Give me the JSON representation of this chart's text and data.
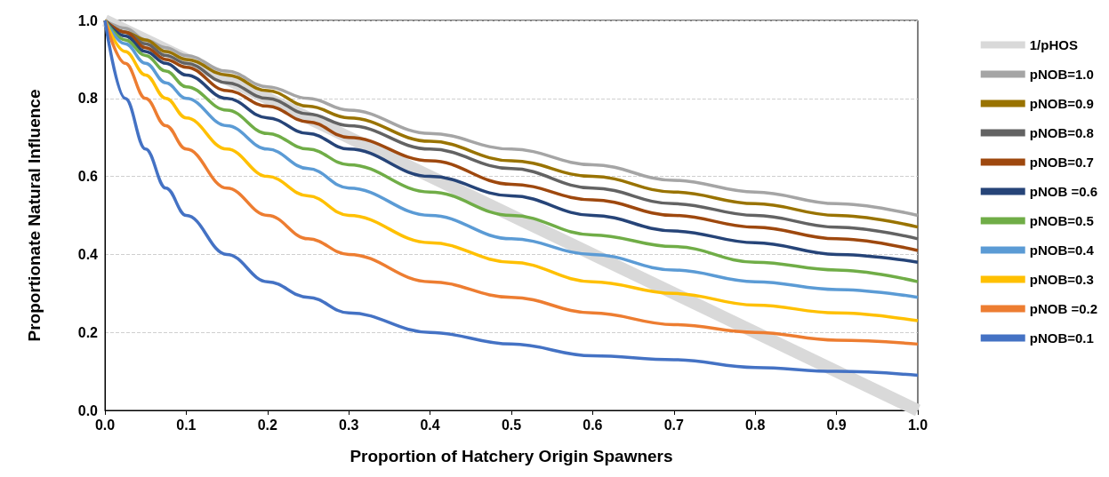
{
  "chart_data": {
    "type": "line",
    "xlabel": "Proportion of Hatchery Origin Spawners",
    "ylabel": "Proportionate Natural Influence",
    "x": [
      0,
      0.025,
      0.05,
      0.075,
      0.1,
      0.15,
      0.2,
      0.25,
      0.3,
      0.4,
      0.5,
      0.6,
      0.7,
      0.8,
      0.9,
      1.0
    ],
    "series": [
      {
        "name": "1/pHOS",
        "color": "#d9d9d9",
        "x": [
          0,
          1
        ],
        "values": [
          1,
          0
        ]
      },
      {
        "name": "pNOB=1.0",
        "color": "#a5a5a5",
        "values": [
          1,
          0.98,
          0.95,
          0.93,
          0.91,
          0.87,
          0.83,
          0.8,
          0.77,
          0.71,
          0.67,
          0.63,
          0.59,
          0.56,
          0.53,
          0.5
        ]
      },
      {
        "name": "pNOB=0.9",
        "color": "#997300",
        "values": [
          1,
          0.97,
          0.95,
          0.92,
          0.9,
          0.86,
          0.82,
          0.78,
          0.75,
          0.69,
          0.64,
          0.6,
          0.56,
          0.53,
          0.5,
          0.47
        ]
      },
      {
        "name": "pNOB=0.8",
        "color": "#636363",
        "values": [
          1,
          0.97,
          0.94,
          0.91,
          0.89,
          0.84,
          0.8,
          0.76,
          0.73,
          0.67,
          0.62,
          0.57,
          0.53,
          0.5,
          0.47,
          0.44
        ]
      },
      {
        "name": "pNOB=0.7",
        "color": "#9e480e",
        "values": [
          1,
          0.97,
          0.93,
          0.9,
          0.88,
          0.82,
          0.78,
          0.74,
          0.7,
          0.64,
          0.58,
          0.54,
          0.5,
          0.47,
          0.44,
          0.41
        ]
      },
      {
        "name": "pNOB =0.6",
        "color": "#264478",
        "values": [
          1,
          0.96,
          0.92,
          0.89,
          0.86,
          0.8,
          0.75,
          0.71,
          0.67,
          0.6,
          0.55,
          0.5,
          0.46,
          0.43,
          0.4,
          0.38
        ]
      },
      {
        "name": "pNOB=0.5",
        "color": "#70ad47",
        "values": [
          1,
          0.95,
          0.91,
          0.87,
          0.83,
          0.77,
          0.71,
          0.67,
          0.63,
          0.56,
          0.5,
          0.45,
          0.42,
          0.38,
          0.36,
          0.33
        ]
      },
      {
        "name": "pNOB=0.4",
        "color": "#5b9bd5",
        "values": [
          1,
          0.94,
          0.89,
          0.84,
          0.8,
          0.73,
          0.67,
          0.62,
          0.57,
          0.5,
          0.44,
          0.4,
          0.36,
          0.33,
          0.31,
          0.29
        ]
      },
      {
        "name": "pNOB=0.3",
        "color": "#ffc000",
        "values": [
          1,
          0.92,
          0.86,
          0.8,
          0.75,
          0.67,
          0.6,
          0.55,
          0.5,
          0.43,
          0.38,
          0.33,
          0.3,
          0.27,
          0.25,
          0.23
        ]
      },
      {
        "name": "pNOB =0.2",
        "color": "#ed7d31",
        "values": [
          1,
          0.89,
          0.8,
          0.73,
          0.67,
          0.57,
          0.5,
          0.44,
          0.4,
          0.33,
          0.29,
          0.25,
          0.22,
          0.2,
          0.18,
          0.17
        ]
      },
      {
        "name": "pNOB=0.1",
        "color": "#4472c4",
        "values": [
          1,
          0.8,
          0.67,
          0.57,
          0.5,
          0.4,
          0.33,
          0.29,
          0.25,
          0.2,
          0.17,
          0.14,
          0.13,
          0.11,
          0.1,
          0.09
        ]
      }
    ],
    "xlim": [
      0,
      1
    ],
    "xticks": [
      {
        "value": 0,
        "label": "0.0"
      },
      0.1,
      0.2,
      0.3,
      0.4,
      0.5,
      0.6,
      0.7,
      0.8,
      0.9,
      {
        "value": 1,
        "label": "1.0"
      }
    ],
    "ylim": [
      0,
      1
    ],
    "yticks": [
      {
        "value": 0,
        "label": "0.0"
      },
      0.2,
      0.4,
      0.6,
      0.8,
      {
        "value": 1,
        "label": "1.0"
      }
    ],
    "grid": "y",
    "legend": "right",
    "line_style": "solid",
    "marker": "none"
  }
}
